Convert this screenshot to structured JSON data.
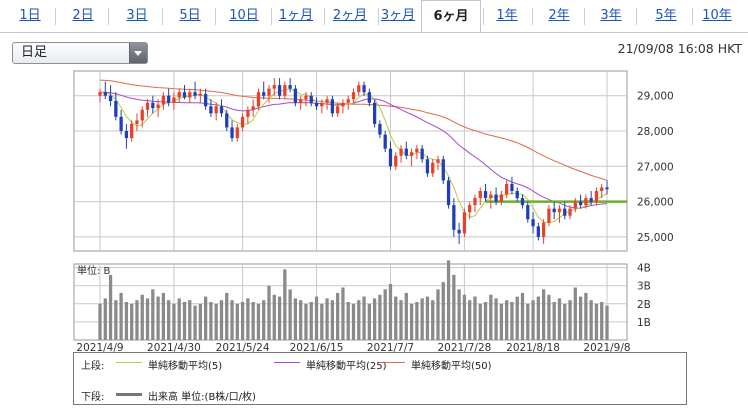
{
  "tabs": [
    {
      "label": "1日",
      "active": false
    },
    {
      "label": "2日",
      "active": false
    },
    {
      "label": "3日",
      "active": false
    },
    {
      "label": "5日",
      "active": false
    },
    {
      "label": "10日",
      "active": false
    },
    {
      "label": "1ヶ月",
      "active": false
    },
    {
      "label": "2ヶ月",
      "active": false
    },
    {
      "label": "3ヶ月",
      "active": false
    },
    {
      "label": "6ヶ月",
      "active": true
    },
    {
      "label": "1年",
      "active": false
    },
    {
      "label": "2年",
      "active": false
    },
    {
      "label": "3年",
      "active": false
    },
    {
      "label": "5年",
      "active": false
    },
    {
      "label": "10年",
      "active": false
    }
  ],
  "period_select": {
    "value": "日足"
  },
  "timestamp": "21/09/08 16:08 HKT",
  "colors": {
    "up": "#e8402a",
    "down": "#1f3fb8",
    "ma5": "#b9c94a",
    "ma25": "#a44ad0",
    "ma50": "#e06a4a",
    "hline": "#6fae2a",
    "volume": "#8a8a8a",
    "grid": "#c8c8c8"
  },
  "legend": {
    "upper_label": "上段:",
    "ma5_label": "単純移動平均(5)",
    "ma25_label": "単純移動平均(25)",
    "ma50_label": "単純移動平均(50)",
    "lower_label": "下段:",
    "volume_label": "出来高 単位:(B株/口/枚)"
  },
  "chart_data": {
    "type": "candlestick",
    "x_tick_labels": [
      "2021/4/9",
      "2021/4/30",
      "2021/5/24",
      "2021/6/15",
      "2021/7/7",
      "2021/7/28",
      "2021/8/18",
      "2021/9/8"
    ],
    "price_axis": {
      "ylim": [
        24600,
        29700
      ],
      "ticks": [
        "29,000",
        "28,000",
        "27,000",
        "26,000",
        "25,000"
      ],
      "tick_values": [
        29000,
        28000,
        27000,
        26000,
        25000
      ]
    },
    "volume_axis": {
      "unit_label": "単位: B",
      "ylim": [
        0,
        4.2
      ],
      "ticks": [
        "4B",
        "3B",
        "2B",
        "1B"
      ],
      "tick_values": [
        4,
        3,
        2,
        1
      ]
    },
    "horizontal_line": 26000,
    "ohlc": [
      [
        29000,
        29200,
        28800,
        29100
      ],
      [
        29100,
        29400,
        28900,
        29000
      ],
      [
        29000,
        29300,
        28700,
        28850
      ],
      [
        28850,
        29100,
        28300,
        28400
      ],
      [
        28400,
        28600,
        27900,
        28000
      ],
      [
        28000,
        28200,
        27500,
        27800
      ],
      [
        27800,
        28300,
        27700,
        28200
      ],
      [
        28200,
        28500,
        28000,
        28300
      ],
      [
        28300,
        28700,
        28100,
        28600
      ],
      [
        28600,
        28900,
        28400,
        28800
      ],
      [
        28800,
        29000,
        28500,
        28650
      ],
      [
        28650,
        28900,
        28400,
        28750
      ],
      [
        28750,
        29100,
        28600,
        29000
      ],
      [
        29000,
        29200,
        28700,
        28800
      ],
      [
        28800,
        29100,
        28600,
        28950
      ],
      [
        28950,
        29200,
        28800,
        29100
      ],
      [
        29100,
        29300,
        28900,
        28950
      ],
      [
        28950,
        29200,
        28800,
        29100
      ],
      [
        29100,
        29400,
        28900,
        29000
      ],
      [
        29000,
        29200,
        28800,
        29050
      ],
      [
        29050,
        29200,
        28600,
        28700
      ],
      [
        28700,
        28900,
        28400,
        28500
      ],
      [
        28500,
        28800,
        28300,
        28700
      ],
      [
        28700,
        28900,
        28400,
        28500
      ],
      [
        28500,
        28600,
        28000,
        28100
      ],
      [
        28100,
        28300,
        27700,
        27800
      ],
      [
        27800,
        28200,
        27700,
        28100
      ],
      [
        28100,
        28500,
        28000,
        28400
      ],
      [
        28400,
        28700,
        28200,
        28600
      ],
      [
        28600,
        28900,
        28400,
        28700
      ],
      [
        28700,
        29200,
        28600,
        29100
      ],
      [
        29100,
        29400,
        28900,
        29000
      ],
      [
        29000,
        29300,
        28800,
        29200
      ],
      [
        29200,
        29500,
        29000,
        29300
      ],
      [
        29300,
        29500,
        28900,
        29000
      ],
      [
        29000,
        29400,
        28900,
        29300
      ],
      [
        29300,
        29500,
        29100,
        29200
      ],
      [
        29200,
        29300,
        28700,
        28800
      ],
      [
        28800,
        29000,
        28600,
        28900
      ],
      [
        28900,
        29100,
        28700,
        29000
      ],
      [
        29000,
        29100,
        28700,
        28800
      ],
      [
        28800,
        28950,
        28600,
        28700
      ],
      [
        28700,
        28900,
        28500,
        28800
      ],
      [
        28800,
        29000,
        28600,
        28900
      ],
      [
        28900,
        29000,
        28400,
        28500
      ],
      [
        28500,
        28800,
        28400,
        28700
      ],
      [
        28700,
        28900,
        28500,
        28800
      ],
      [
        28800,
        29000,
        28600,
        28900
      ],
      [
        28900,
        29200,
        28800,
        29100
      ],
      [
        29100,
        29400,
        29000,
        29300
      ],
      [
        29300,
        29400,
        29000,
        29100
      ],
      [
        29100,
        29200,
        28700,
        28800
      ],
      [
        28800,
        28900,
        28100,
        28200
      ],
      [
        28200,
        28300,
        27800,
        27900
      ],
      [
        27900,
        28000,
        27400,
        27500
      ],
      [
        27500,
        27700,
        26900,
        27000
      ],
      [
        27000,
        27400,
        26900,
        27300
      ],
      [
        27300,
        27600,
        27100,
        27500
      ],
      [
        27500,
        27700,
        27200,
        27300
      ],
      [
        27300,
        27500,
        27000,
        27400
      ],
      [
        27400,
        27600,
        27200,
        27500
      ],
      [
        27500,
        27600,
        27100,
        27200
      ],
      [
        27200,
        27300,
        26700,
        26800
      ],
      [
        26800,
        27200,
        26700,
        27100
      ],
      [
        27100,
        27300,
        26900,
        27200
      ],
      [
        27200,
        27300,
        26500,
        26600
      ],
      [
        26600,
        26700,
        25800,
        25900
      ],
      [
        25900,
        26100,
        25000,
        25200
      ],
      [
        25200,
        25400,
        24800,
        25100
      ],
      [
        25100,
        25800,
        25000,
        25700
      ],
      [
        25700,
        26000,
        25500,
        25900
      ],
      [
        25900,
        26200,
        25700,
        26100
      ],
      [
        26100,
        26400,
        25900,
        26300
      ],
      [
        26300,
        26500,
        26000,
        26100
      ],
      [
        26100,
        26300,
        25800,
        26200
      ],
      [
        26200,
        26400,
        25900,
        26000
      ],
      [
        26000,
        26300,
        25900,
        26200
      ],
      [
        26200,
        26600,
        26100,
        26500
      ],
      [
        26500,
        26700,
        26200,
        26300
      ],
      [
        26300,
        26400,
        26000,
        26100
      ],
      [
        26100,
        26200,
        25800,
        25900
      ],
      [
        25900,
        26000,
        25400,
        25500
      ],
      [
        25500,
        25700,
        25100,
        25300
      ],
      [
        25300,
        25400,
        24900,
        25000
      ],
      [
        25000,
        25500,
        24800,
        25400
      ],
      [
        25400,
        25900,
        25300,
        25800
      ],
      [
        25800,
        26000,
        25500,
        25700
      ],
      [
        25700,
        25900,
        25400,
        25800
      ],
      [
        25800,
        26000,
        25500,
        25600
      ],
      [
        25600,
        25900,
        25500,
        25800
      ],
      [
        25800,
        26100,
        25700,
        26000
      ],
      [
        26000,
        26200,
        25800,
        25900
      ],
      [
        25900,
        26200,
        25800,
        26100
      ],
      [
        26100,
        26300,
        25900,
        26000
      ],
      [
        26000,
        26400,
        25900,
        26300
      ],
      [
        26300,
        26500,
        26100,
        26400
      ],
      [
        26400,
        26600,
        26200,
        26350
      ]
    ],
    "volume": [
      2.0,
      2.3,
      3.6,
      2.2,
      2.6,
      2.1,
      2.0,
      2.2,
      2.5,
      2.3,
      2.8,
      2.4,
      2.6,
      2.2,
      2.0,
      2.3,
      2.1,
      2.2,
      1.9,
      2.0,
      2.4,
      2.1,
      2.0,
      2.2,
      2.6,
      2.2,
      2.0,
      2.1,
      2.3,
      2.1,
      2.0,
      2.2,
      3.0,
      2.5,
      2.4,
      3.9,
      2.8,
      2.3,
      2.2,
      2.0,
      2.1,
      2.4,
      2.0,
      2.3,
      2.2,
      2.6,
      2.9,
      2.1,
      2.0,
      2.2,
      2.4,
      2.0,
      2.3,
      2.5,
      2.8,
      3.1,
      2.4,
      2.2,
      2.6,
      2.0,
      2.1,
      2.3,
      2.4,
      2.2,
      2.8,
      3.2,
      4.4,
      3.6,
      2.8,
      2.5,
      2.2,
      2.4,
      2.0,
      2.1,
      2.5,
      2.3,
      2.0,
      2.2,
      2.1,
      2.4,
      2.6,
      2.0,
      2.2,
      2.4,
      2.8,
      2.5,
      2.1,
      2.3,
      2.0,
      2.2,
      2.9,
      2.4,
      2.6,
      2.2,
      2.0,
      2.1,
      1.9
    ]
  }
}
